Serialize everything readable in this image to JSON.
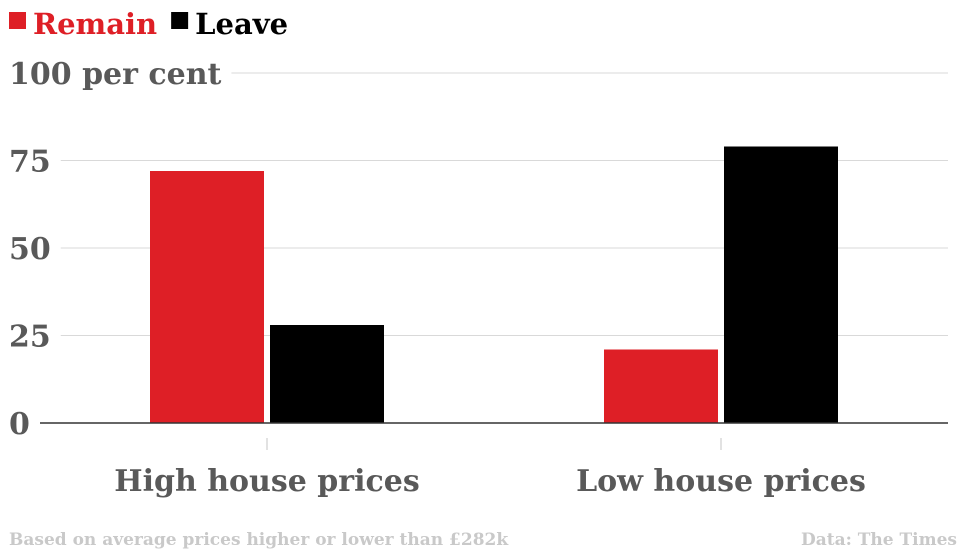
{
  "chart_data": {
    "type": "bar",
    "categories": [
      "High house prices",
      "Low house prices"
    ],
    "series": [
      {
        "name": "Remain",
        "values": [
          72,
          21
        ],
        "color": "#de1f26"
      },
      {
        "name": "Leave",
        "values": [
          28,
          79
        ],
        "color": "#000000"
      }
    ],
    "ylim": [
      0,
      100
    ],
    "yticks": [
      0,
      25,
      50,
      75,
      100
    ],
    "ytick_labels": [
      "0",
      "25",
      "50",
      "75",
      "100 per cent"
    ],
    "legend_placement": "top-left",
    "grid": true
  },
  "footer": {
    "note": "Based on average prices higher or lower than £282k",
    "source": "Data: The Times"
  },
  "colors": {
    "gridline": "#d9d9d9",
    "axis": "#333333",
    "tick_text": "#595959",
    "footer_text": "#c9c9c9"
  }
}
